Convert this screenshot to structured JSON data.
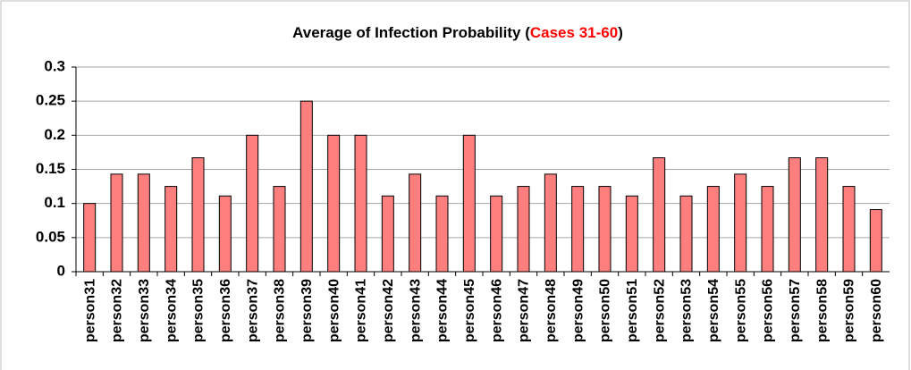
{
  "chart_data": {
    "type": "bar",
    "title_parts": [
      {
        "text": "Average of Infection Probability (",
        "color": "#000000"
      },
      {
        "text": "Cases 31-60",
        "color": "#ff0000"
      },
      {
        "text": ")",
        "color": "#000000"
      }
    ],
    "categories": [
      "person31",
      "person32",
      "person33",
      "person34",
      "person35",
      "person36",
      "person37",
      "person38",
      "person39",
      "person40",
      "person41",
      "person42",
      "person43",
      "person44",
      "person45",
      "person46",
      "person47",
      "person48",
      "person49",
      "person50",
      "person51",
      "person52",
      "person53",
      "person54",
      "person55",
      "person56",
      "person57",
      "person58",
      "person59",
      "person60"
    ],
    "values": [
      0.1,
      0.143,
      0.143,
      0.125,
      0.167,
      0.111,
      0.2,
      0.125,
      0.25,
      0.2,
      0.2,
      0.111,
      0.143,
      0.111,
      0.2,
      0.111,
      0.125,
      0.143,
      0.125,
      0.125,
      0.111,
      0.167,
      0.111,
      0.125,
      0.143,
      0.125,
      0.167,
      0.167,
      0.125,
      0.091
    ],
    "color": "#ff7f7f",
    "ylim": [
      0,
      0.3
    ],
    "yticks": [
      0,
      0.05,
      0.1,
      0.15,
      0.2,
      0.25,
      0.3
    ],
    "grid": true
  }
}
